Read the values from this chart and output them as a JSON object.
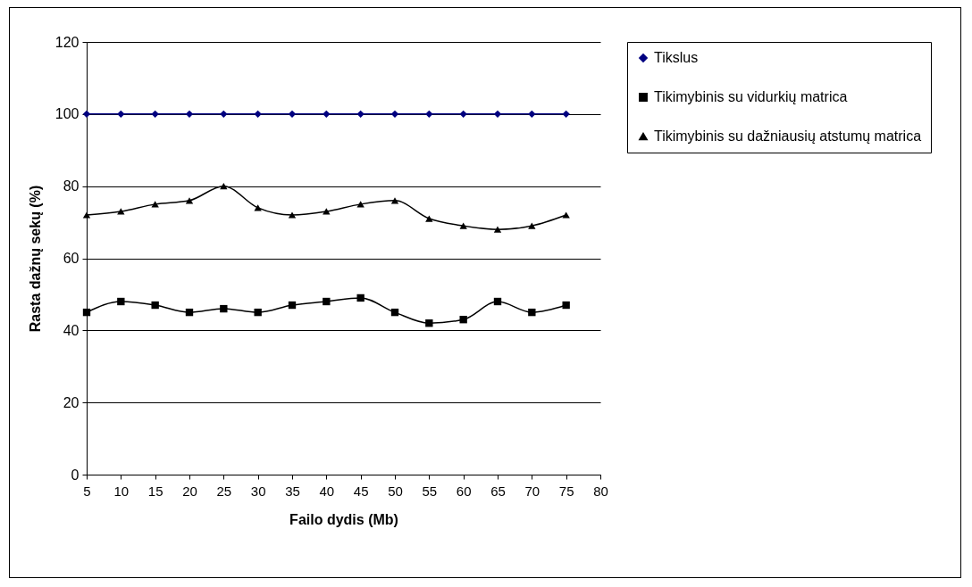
{
  "chart_data": {
    "type": "line",
    "xlabel": "Failo dydis (Mb)",
    "ylabel": "Rasta dažnų sekų (%)",
    "x": [
      5,
      10,
      15,
      20,
      25,
      30,
      35,
      40,
      45,
      50,
      55,
      60,
      65,
      70,
      75
    ],
    "xlim": [
      5,
      80
    ],
    "xticks": [
      5,
      10,
      15,
      20,
      25,
      30,
      35,
      40,
      45,
      50,
      55,
      60,
      65,
      70,
      75,
      80
    ],
    "ylim": [
      0,
      120
    ],
    "yticks": [
      0,
      20,
      40,
      60,
      80,
      100,
      120
    ],
    "grid": "y",
    "legend": "right",
    "series": [
      {
        "name": "Tikslus",
        "color": "#000080",
        "marker": "diamond",
        "values": [
          100,
          100,
          100,
          100,
          100,
          100,
          100,
          100,
          100,
          100,
          100,
          100,
          100,
          100,
          100
        ]
      },
      {
        "name": "Tikimybinis su vidurkių matrica",
        "color": "#000000",
        "marker": "square",
        "values": [
          45,
          48,
          47,
          45,
          46,
          45,
          47,
          48,
          49,
          45,
          42,
          43,
          48,
          45,
          47
        ]
      },
      {
        "name": "Tikimybinis su dažniausių atstumų matrica",
        "color": "#000000",
        "marker": "triangle",
        "values": [
          72,
          73,
          75,
          76,
          80,
          74,
          72,
          73,
          75,
          76,
          71,
          69,
          68,
          69,
          72
        ]
      }
    ]
  }
}
